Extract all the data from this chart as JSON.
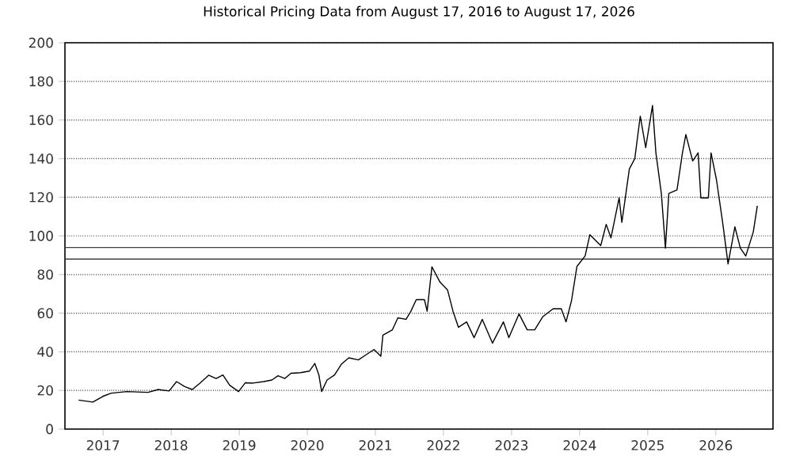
{
  "chart_data": {
    "type": "line",
    "title": "Historical Pricing Data from August 17, 2016 to August 17, 2026",
    "x": [
      2016.64,
      2016.85,
      2017.0,
      2017.12,
      2017.35,
      2017.66,
      2017.81,
      2017.97,
      2018.08,
      2018.2,
      2018.31,
      2018.43,
      2018.55,
      2018.66,
      2018.76,
      2018.86,
      2018.99,
      2019.09,
      2019.2,
      2019.36,
      2019.48,
      2019.57,
      2019.67,
      2019.76,
      2019.9,
      2020.03,
      2020.11,
      2020.17,
      2020.21,
      2020.29,
      2020.4,
      2020.5,
      2020.61,
      2020.75,
      2020.83,
      2020.98,
      2021.08,
      2021.11,
      2021.25,
      2021.33,
      2021.45,
      2021.52,
      2021.6,
      2021.72,
      2021.76,
      2021.83,
      2021.95,
      2022.06,
      2022.14,
      2022.22,
      2022.34,
      2022.45,
      2022.57,
      2022.72,
      2022.88,
      2022.96,
      2023.11,
      2023.23,
      2023.34,
      2023.46,
      2023.61,
      2023.73,
      2023.8,
      2023.88,
      2023.96,
      2024.08,
      2024.15,
      2024.31,
      2024.39,
      2024.46,
      2024.58,
      2024.62,
      2024.73,
      2024.81,
      2024.89,
      2024.97,
      2025.07,
      2025.12,
      2025.2,
      2025.26,
      2025.31,
      2025.43,
      2025.51,
      2025.56,
      2025.66,
      2025.74,
      2025.78,
      2025.89,
      2025.93,
      2026.01,
      2026.1,
      2026.18,
      2026.28,
      2026.36,
      2026.44,
      2026.55,
      2026.61
    ],
    "series": [
      {
        "color": "#000000",
        "values": [
          15,
          14,
          17,
          18.6,
          19.4,
          19,
          20.5,
          19.7,
          24.6,
          22,
          20.5,
          24,
          27.9,
          26.2,
          28,
          22.7,
          19.4,
          24,
          23.8,
          24.6,
          25.4,
          27.6,
          26.2,
          28.9,
          29.2,
          30,
          34,
          28,
          19.4,
          25.4,
          28,
          33.6,
          36.9,
          35.8,
          37.7,
          41.2,
          37.7,
          48.6,
          51.4,
          57.6,
          56.8,
          60.9,
          67,
          67,
          61,
          84,
          76,
          72,
          61,
          52.7,
          55.5,
          47.3,
          56.8,
          44.5,
          55.5,
          47.3,
          59.6,
          51.4,
          51.4,
          58.2,
          62.3,
          62.3,
          55.5,
          66.4,
          84.2,
          89.6,
          100.6,
          95,
          106,
          99,
          119.7,
          107,
          134.7,
          140,
          162,
          145.7,
          167.5,
          143,
          122,
          93.7,
          122,
          123.8,
          143,
          152.5,
          138.8,
          143,
          119.7,
          119.7,
          143,
          129,
          107,
          85.5,
          104.7,
          93.7,
          89.6,
          102,
          115.6
        ]
      }
    ],
    "xlim": [
      2016.44,
      2026.84
    ],
    "xticks": [
      2017,
      2018,
      2019,
      2020,
      2021,
      2022,
      2023,
      2024,
      2025,
      2026
    ],
    "ylim": [
      0,
      200
    ],
    "yticks": [
      0,
      20,
      40,
      60,
      80,
      100,
      120,
      140,
      160,
      180,
      200
    ],
    "grid": "y",
    "line_style": "solid",
    "ref_lines": [
      {
        "axis": "y",
        "value": 94,
        "color": "#404040"
      },
      {
        "axis": "y",
        "value": 88,
        "color": "#404040"
      }
    ]
  }
}
